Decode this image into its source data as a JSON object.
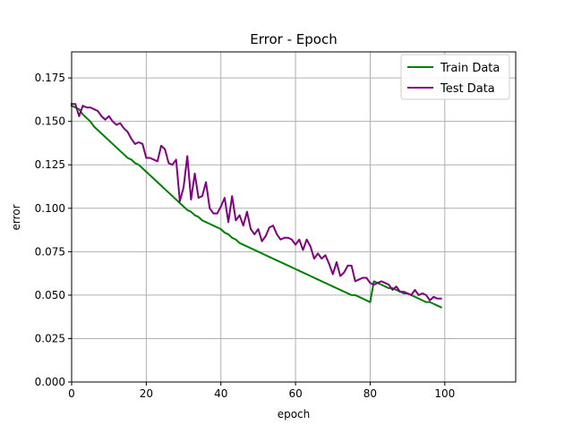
{
  "chart_data": {
    "type": "line",
    "title": "Error - Epoch",
    "xlabel": "epoch",
    "ylabel": "error",
    "xlim": [
      0,
      119
    ],
    "ylim": [
      0,
      0.19
    ],
    "xticks": [
      0,
      20,
      40,
      60,
      80,
      100
    ],
    "yticks": [
      0.0,
      0.025,
      0.05,
      0.075,
      0.1,
      0.125,
      0.15,
      0.175
    ],
    "xtick_labels": [
      "0",
      "20",
      "40",
      "60",
      "80",
      "100"
    ],
    "ytick_labels": [
      "0.000",
      "0.025",
      "0.050",
      "0.075",
      "0.100",
      "0.125",
      "0.150",
      "0.175"
    ],
    "grid": true,
    "legend": "top-right",
    "series": [
      {
        "name": "Train Data",
        "color": "#008000",
        "x": [
          0,
          1,
          2,
          3,
          4,
          5,
          6,
          7,
          8,
          9,
          10,
          11,
          12,
          13,
          14,
          15,
          16,
          17,
          18,
          19,
          20,
          21,
          22,
          23,
          24,
          25,
          26,
          27,
          28,
          29,
          30,
          31,
          32,
          33,
          34,
          35,
          36,
          37,
          38,
          39,
          40,
          41,
          42,
          43,
          44,
          45,
          46,
          47,
          48,
          49,
          50,
          51,
          52,
          53,
          54,
          55,
          56,
          57,
          58,
          59,
          60,
          61,
          62,
          63,
          64,
          65,
          66,
          67,
          68,
          69,
          70,
          71,
          72,
          73,
          74,
          75,
          76,
          77,
          78,
          79,
          80,
          81,
          82,
          83,
          84,
          85,
          86,
          87,
          88,
          89,
          90,
          91,
          92,
          93,
          94,
          95,
          96,
          97,
          98,
          99
        ],
        "values": [
          0.159,
          0.158,
          0.157,
          0.154,
          0.152,
          0.15,
          0.147,
          0.145,
          0.143,
          0.141,
          0.139,
          0.137,
          0.135,
          0.133,
          0.131,
          0.129,
          0.128,
          0.126,
          0.125,
          0.123,
          0.121,
          0.119,
          0.117,
          0.115,
          0.113,
          0.111,
          0.109,
          0.107,
          0.105,
          0.103,
          0.101,
          0.099,
          0.098,
          0.096,
          0.095,
          0.093,
          0.092,
          0.091,
          0.09,
          0.089,
          0.088,
          0.086,
          0.085,
          0.083,
          0.082,
          0.08,
          0.079,
          0.078,
          0.077,
          0.076,
          0.075,
          0.074,
          0.073,
          0.072,
          0.071,
          0.07,
          0.069,
          0.068,
          0.067,
          0.066,
          0.065,
          0.064,
          0.063,
          0.062,
          0.061,
          0.06,
          0.059,
          0.058,
          0.057,
          0.056,
          0.055,
          0.054,
          0.053,
          0.052,
          0.051,
          0.05,
          0.05,
          0.049,
          0.048,
          0.047,
          0.046,
          0.058,
          0.057,
          0.056,
          0.055,
          0.054,
          0.054,
          0.053,
          0.052,
          0.051,
          0.051,
          0.05,
          0.049,
          0.048,
          0.047,
          0.046,
          0.046,
          0.045,
          0.044,
          0.043
        ]
      },
      {
        "name": "Test Data",
        "color": "#800080",
        "x": [
          0,
          1,
          2,
          3,
          4,
          5,
          6,
          7,
          8,
          9,
          10,
          11,
          12,
          13,
          14,
          15,
          16,
          17,
          18,
          19,
          20,
          21,
          22,
          23,
          24,
          25,
          26,
          27,
          28,
          29,
          30,
          31,
          32,
          33,
          34,
          35,
          36,
          37,
          38,
          39,
          40,
          41,
          42,
          43,
          44,
          45,
          46,
          47,
          48,
          49,
          50,
          51,
          52,
          53,
          54,
          55,
          56,
          57,
          58,
          59,
          60,
          61,
          62,
          63,
          64,
          65,
          66,
          67,
          68,
          69,
          70,
          71,
          72,
          73,
          74,
          75,
          76,
          77,
          78,
          79,
          80,
          81,
          82,
          83,
          84,
          85,
          86,
          87,
          88,
          89,
          90,
          91,
          92,
          93,
          94,
          95,
          96,
          97,
          98,
          99
        ],
        "values": [
          0.16,
          0.16,
          0.153,
          0.159,
          0.158,
          0.158,
          0.157,
          0.156,
          0.153,
          0.151,
          0.153,
          0.15,
          0.148,
          0.149,
          0.146,
          0.144,
          0.14,
          0.137,
          0.138,
          0.137,
          0.129,
          0.129,
          0.128,
          0.127,
          0.136,
          0.134,
          0.126,
          0.125,
          0.128,
          0.104,
          0.112,
          0.13,
          0.105,
          0.12,
          0.106,
          0.107,
          0.115,
          0.1,
          0.097,
          0.097,
          0.101,
          0.106,
          0.092,
          0.107,
          0.093,
          0.096,
          0.09,
          0.098,
          0.088,
          0.085,
          0.088,
          0.081,
          0.084,
          0.089,
          0.09,
          0.085,
          0.082,
          0.083,
          0.083,
          0.082,
          0.079,
          0.082,
          0.076,
          0.082,
          0.078,
          0.071,
          0.074,
          0.071,
          0.073,
          0.068,
          0.062,
          0.069,
          0.061,
          0.063,
          0.067,
          0.067,
          0.058,
          0.059,
          0.06,
          0.06,
          0.057,
          0.056,
          0.057,
          0.058,
          0.057,
          0.056,
          0.053,
          0.055,
          0.052,
          0.052,
          0.051,
          0.05,
          0.053,
          0.05,
          0.051,
          0.05,
          0.047,
          0.049,
          0.048,
          0.048
        ]
      }
    ]
  }
}
